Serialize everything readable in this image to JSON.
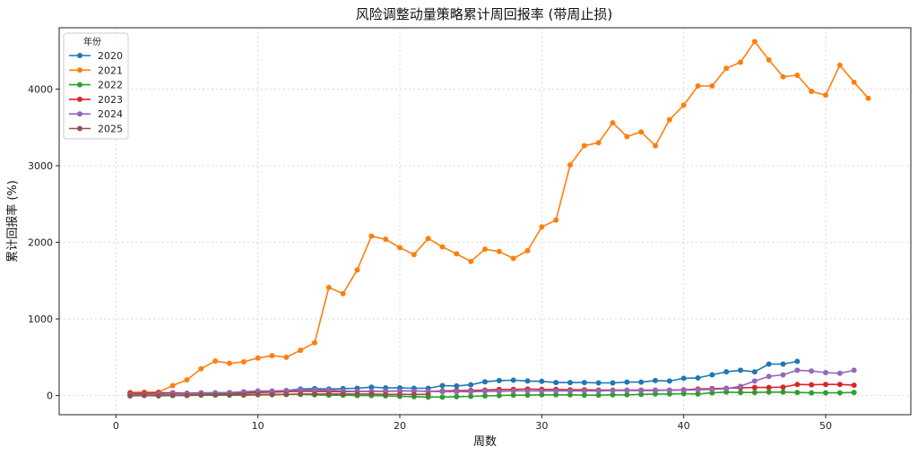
{
  "chart_data": {
    "type": "line",
    "title": "风险调整动量策略累计周回报率 (带周止损)",
    "xlabel": "周数",
    "ylabel": "累计回报率 (%)",
    "xlim": [
      -4,
      56
    ],
    "ylim": [
      -250,
      4800
    ],
    "xticks": [
      0,
      10,
      20,
      30,
      40,
      50
    ],
    "yticks": [
      0,
      1000,
      2000,
      3000,
      4000
    ],
    "grid": true,
    "legend": {
      "title": "年份",
      "position": "top-left"
    },
    "series": [
      {
        "name": "2020",
        "color": "#1f77b4",
        "x": [
          1,
          2,
          3,
          4,
          5,
          6,
          7,
          8,
          9,
          10,
          11,
          12,
          13,
          14,
          15,
          16,
          17,
          18,
          19,
          20,
          21,
          22,
          23,
          24,
          25,
          26,
          27,
          28,
          29,
          30,
          31,
          32,
          33,
          34,
          35,
          36,
          37,
          38,
          39,
          40,
          41,
          42,
          43,
          44,
          45,
          46,
          47,
          48
        ],
        "values": [
          20,
          25,
          25,
          30,
          25,
          30,
          25,
          30,
          40,
          50,
          55,
          65,
          85,
          90,
          85,
          90,
          95,
          110,
          100,
          100,
          95,
          95,
          130,
          125,
          140,
          180,
          195,
          200,
          190,
          185,
          170,
          170,
          170,
          165,
          165,
          175,
          175,
          195,
          190,
          225,
          230,
          270,
          310,
          330,
          310,
          410,
          410,
          445
        ]
      },
      {
        "name": "2021",
        "color": "#ff7f0e",
        "x": [
          1,
          2,
          3,
          4,
          5,
          6,
          7,
          8,
          9,
          10,
          11,
          12,
          13,
          14,
          15,
          16,
          17,
          18,
          19,
          20,
          21,
          22,
          23,
          24,
          25,
          26,
          27,
          28,
          29,
          30,
          31,
          32,
          33,
          34,
          35,
          36,
          37,
          38,
          39,
          40,
          41,
          42,
          43,
          44,
          45,
          46,
          47,
          48,
          49,
          50,
          51,
          52,
          53
        ],
        "values": [
          40,
          45,
          45,
          130,
          205,
          350,
          450,
          420,
          440,
          490,
          520,
          500,
          590,
          690,
          1410,
          1330,
          1640,
          2080,
          2040,
          1930,
          1840,
          2050,
          1940,
          1850,
          1750,
          1910,
          1880,
          1790,
          1890,
          2200,
          2290,
          3010,
          3260,
          3300,
          3560,
          3380,
          3440,
          3260,
          3600,
          3790,
          4040,
          4040,
          4270,
          4350,
          4620,
          4380,
          4160,
          4180,
          3970,
          3920,
          4310,
          4090,
          3880
        ]
      },
      {
        "name": "2022",
        "color": "#2ca02c",
        "x": [
          1,
          2,
          3,
          4,
          5,
          6,
          7,
          8,
          9,
          10,
          11,
          12,
          13,
          14,
          15,
          16,
          17,
          18,
          19,
          20,
          21,
          22,
          23,
          24,
          25,
          26,
          27,
          28,
          29,
          30,
          31,
          32,
          33,
          34,
          35,
          36,
          37,
          38,
          39,
          40,
          41,
          42,
          43,
          44,
          45,
          46,
          47,
          48,
          49,
          50,
          51,
          52
        ],
        "values": [
          5,
          5,
          5,
          5,
          10,
          10,
          10,
          15,
          15,
          15,
          15,
          15,
          15,
          10,
          5,
          5,
          0,
          0,
          -5,
          -10,
          -15,
          -20,
          -20,
          -15,
          -10,
          -5,
          0,
          5,
          5,
          10,
          10,
          10,
          5,
          5,
          10,
          10,
          15,
          20,
          20,
          25,
          20,
          35,
          45,
          40,
          40,
          45,
          45,
          40,
          35,
          35,
          35,
          40
        ]
      },
      {
        "name": "2023",
        "color": "#d62728",
        "x": [
          1,
          2,
          3,
          4,
          5,
          6,
          7,
          8,
          9,
          10,
          11,
          12,
          13,
          14,
          15,
          16,
          17,
          18,
          19,
          20,
          21,
          22,
          23,
          24,
          25,
          26,
          27,
          28,
          29,
          30,
          31,
          32,
          33,
          34,
          35,
          36,
          37,
          38,
          39,
          40,
          41,
          42,
          43,
          44,
          45,
          46,
          47,
          48,
          49,
          50,
          51,
          52
        ],
        "values": [
          30,
          30,
          35,
          35,
          30,
          35,
          35,
          30,
          35,
          40,
          45,
          50,
          55,
          55,
          50,
          50,
          55,
          55,
          55,
          60,
          60,
          55,
          60,
          65,
          65,
          70,
          80,
          80,
          85,
          80,
          80,
          75,
          75,
          70,
          70,
          70,
          70,
          70,
          70,
          75,
          85,
          90,
          95,
          100,
          105,
          105,
          110,
          145,
          140,
          145,
          145,
          135
        ]
      },
      {
        "name": "2024",
        "color": "#9467bd",
        "x": [
          1,
          2,
          3,
          4,
          5,
          6,
          7,
          8,
          9,
          10,
          11,
          12,
          13,
          14,
          15,
          16,
          17,
          18,
          19,
          20,
          21,
          22,
          23,
          24,
          25,
          26,
          27,
          28,
          29,
          30,
          31,
          32,
          33,
          34,
          35,
          36,
          37,
          38,
          39,
          40,
          41,
          42,
          43,
          44,
          45,
          46,
          47,
          48,
          49,
          50,
          51,
          52
        ],
        "values": [
          10,
          15,
          20,
          25,
          25,
          30,
          35,
          40,
          50,
          60,
          60,
          65,
          70,
          70,
          70,
          60,
          55,
          55,
          60,
          60,
          60,
          55,
          50,
          50,
          50,
          55,
          55,
          60,
          60,
          60,
          60,
          60,
          60,
          60,
          65,
          65,
          65,
          65,
          70,
          70,
          75,
          80,
          90,
          120,
          190,
          250,
          270,
          330,
          320,
          300,
          290,
          330
        ]
      },
      {
        "name": "2025",
        "color": "#8c564b",
        "x": [
          1,
          2,
          3,
          4,
          5,
          6,
          7,
          8,
          9,
          10,
          11,
          12,
          13,
          14,
          15,
          16,
          17,
          18,
          19,
          20,
          21,
          22
        ],
        "values": [
          -5,
          0,
          -5,
          0,
          0,
          5,
          5,
          5,
          5,
          10,
          10,
          15,
          20,
          20,
          20,
          20,
          20,
          20,
          15,
          15,
          15,
          15
        ]
      }
    ]
  }
}
